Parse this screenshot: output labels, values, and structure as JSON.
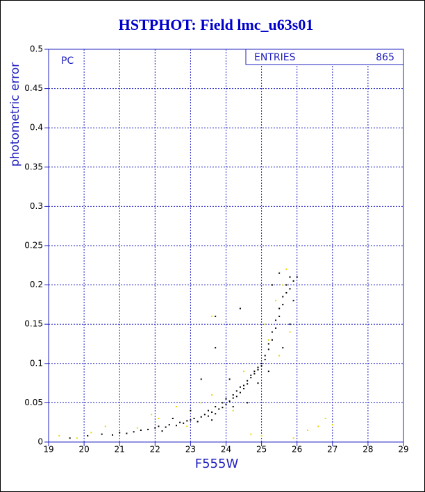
{
  "chart_data": {
    "type": "scatter",
    "title": "HSTPHOT: Field lmc_u63s01",
    "x_label": "F555W",
    "y_label": "photometric error",
    "panel_label": "PC",
    "stats_label": "ENTRIES",
    "stats_value": 865,
    "xlim": [
      19,
      29
    ],
    "ylim": [
      0,
      0.5
    ],
    "xticks": [
      19,
      20,
      21,
      22,
      23,
      24,
      25,
      26,
      27,
      28,
      29
    ],
    "yticks": [
      0,
      0.05,
      0.1,
      0.15,
      0.2,
      0.25,
      0.3,
      0.35,
      0.4,
      0.45,
      0.5
    ],
    "grid": true,
    "series": [
      {
        "color": "#000000",
        "x": [
          19.6,
          20.1,
          20.5,
          20.8,
          21.0,
          21.2,
          21.4,
          21.6,
          21.8,
          22.0,
          22.1,
          22.3,
          22.4,
          22.6,
          22.7,
          22.8,
          22.9,
          23.0,
          23.1,
          23.2,
          23.3,
          23.4,
          23.5,
          23.5,
          23.6,
          23.7,
          23.7,
          23.8,
          23.9,
          23.9,
          24.0,
          24.0,
          24.1,
          24.2,
          24.2,
          24.3,
          24.3,
          24.4,
          24.4,
          24.5,
          24.5,
          24.6,
          24.6,
          24.7,
          24.7,
          24.8,
          24.8,
          24.9,
          24.9,
          25.0,
          25.0,
          25.1,
          25.1,
          25.2,
          25.2,
          25.3,
          25.3,
          25.4,
          25.4,
          25.5,
          25.5,
          25.6,
          25.6,
          25.7,
          25.7,
          25.8,
          25.8,
          25.9,
          25.9,
          26.0,
          25.3,
          25.5,
          23.7,
          23.7,
          24.4,
          23.3,
          24.1,
          22.5,
          23.0,
          24.6,
          25.6,
          25.8,
          25.2,
          24.9,
          24.2,
          23.6,
          22.2
        ],
        "y": [
          0.005,
          0.008,
          0.01,
          0.009,
          0.012,
          0.011,
          0.013,
          0.015,
          0.016,
          0.018,
          0.02,
          0.019,
          0.022,
          0.021,
          0.025,
          0.024,
          0.027,
          0.028,
          0.03,
          0.026,
          0.032,
          0.035,
          0.033,
          0.04,
          0.038,
          0.045,
          0.036,
          0.042,
          0.05,
          0.044,
          0.048,
          0.055,
          0.052,
          0.06,
          0.056,
          0.065,
          0.058,
          0.07,
          0.063,
          0.072,
          0.068,
          0.078,
          0.074,
          0.082,
          0.085,
          0.09,
          0.087,
          0.095,
          0.092,
          0.1,
          0.097,
          0.105,
          0.11,
          0.118,
          0.125,
          0.13,
          0.14,
          0.145,
          0.155,
          0.16,
          0.17,
          0.175,
          0.185,
          0.19,
          0.2,
          0.195,
          0.21,
          0.205,
          0.18,
          0.21,
          0.2,
          0.215,
          0.16,
          0.12,
          0.17,
          0.08,
          0.08,
          0.03,
          0.04,
          0.05,
          0.12,
          0.15,
          0.09,
          0.075,
          0.045,
          0.028,
          0.014
        ]
      },
      {
        "color": "#e8d800",
        "x": [
          19.3,
          19.8,
          20.2,
          20.6,
          21.5,
          21.9,
          22.1,
          22.6,
          22.9,
          23.3,
          23.6,
          24.2,
          24.5,
          24.7,
          25.0,
          25.2,
          25.4,
          25.5,
          25.6,
          25.7,
          25.8,
          25.9,
          26.3,
          26.6,
          26.8,
          27.0,
          23.6,
          25.1
        ],
        "y": [
          0.008,
          0.005,
          0.012,
          0.02,
          0.018,
          0.035,
          0.03,
          0.045,
          0.02,
          0.05,
          0.06,
          0.04,
          0.09,
          0.01,
          0.008,
          0.13,
          0.18,
          0.11,
          0.2,
          0.22,
          0.14,
          0.005,
          0.015,
          0.02,
          0.03,
          0.022,
          0.16,
          0.15
        ]
      }
    ]
  }
}
